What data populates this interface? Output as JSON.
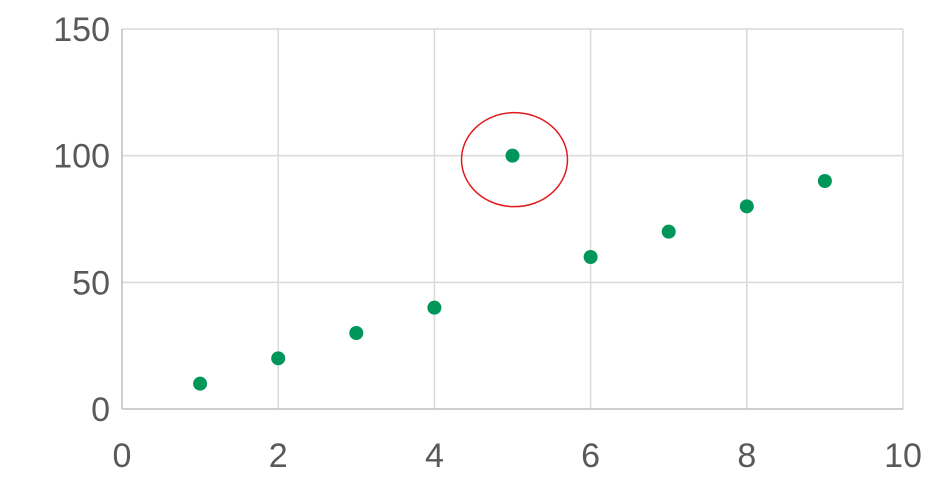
{
  "chart_data": {
    "type": "scatter",
    "title": "",
    "xlabel": "",
    "ylabel": "",
    "xlim": [
      0,
      10
    ],
    "ylim": [
      0,
      150
    ],
    "x_ticks": [
      0,
      2,
      4,
      6,
      8,
      10
    ],
    "y_ticks": [
      0,
      50,
      100,
      150
    ],
    "grid": true,
    "series": [
      {
        "color": "#00965a",
        "points": [
          {
            "x": 1,
            "y": 10
          },
          {
            "x": 2,
            "y": 20
          },
          {
            "x": 3,
            "y": 30
          },
          {
            "x": 4,
            "y": 40
          },
          {
            "x": 5,
            "y": 100
          },
          {
            "x": 6,
            "y": 60
          },
          {
            "x": 7,
            "y": 70
          },
          {
            "x": 8,
            "y": 80
          },
          {
            "x": 9,
            "y": 90
          }
        ]
      }
    ],
    "annotations": [
      {
        "type": "circle",
        "target_point": {
          "x": 5,
          "y": 100
        },
        "color": "#e31a1c"
      }
    ]
  }
}
